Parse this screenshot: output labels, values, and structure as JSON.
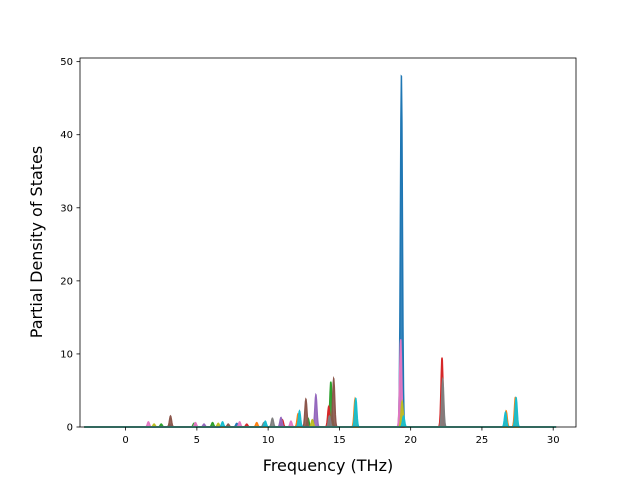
{
  "chart_data": {
    "type": "area",
    "title": "",
    "xlabel": "Frequency (THz)",
    "ylabel": "Partial Density of States",
    "xlim": [
      -3.2,
      31.6
    ],
    "ylim": [
      0,
      50.5
    ],
    "xticks": [
      0,
      5,
      10,
      15,
      20,
      25,
      30
    ],
    "yticks": [
      0,
      10,
      20,
      30,
      40,
      50
    ],
    "x_range_plotted": [
      -2.9,
      30.2
    ],
    "legend": "none",
    "grid": false,
    "series_colors": [
      "#1f77b4",
      "#ff7f0e",
      "#2ca02c",
      "#d62728",
      "#9467bd",
      "#8c564b",
      "#e377c2",
      "#7f7f7f",
      "#bcbd22",
      "#17becf"
    ],
    "series": [
      {
        "peaks": [
          [
            19.35,
            48.0
          ],
          [
            14.5,
            1.2
          ],
          [
            3.1,
            0.4
          ],
          [
            7.8,
            0.5
          ]
        ]
      },
      {
        "peaks": [
          [
            19.45,
            1.6
          ],
          [
            26.7,
            2.2
          ],
          [
            27.35,
            4.1
          ],
          [
            16.1,
            3.8
          ],
          [
            12.1,
            1.8
          ],
          [
            9.2,
            0.6
          ]
        ]
      },
      {
        "peaks": [
          [
            14.4,
            6.2
          ],
          [
            12.8,
            1.2
          ],
          [
            6.1,
            0.6
          ],
          [
            4.8,
            0.5
          ],
          [
            2.5,
            0.4
          ]
        ]
      },
      {
        "peaks": [
          [
            22.2,
            9.5
          ],
          [
            14.25,
            2.8
          ],
          [
            11.0,
            1.0
          ],
          [
            8.5,
            0.4
          ]
        ]
      },
      {
        "peaks": [
          [
            13.35,
            4.4
          ],
          [
            10.9,
            1.3
          ],
          [
            5.5,
            0.4
          ]
        ]
      },
      {
        "peaks": [
          [
            14.6,
            6.6
          ],
          [
            12.65,
            3.8
          ],
          [
            3.15,
            1.5
          ],
          [
            7.2,
            0.4
          ]
        ]
      },
      {
        "peaks": [
          [
            19.3,
            12.0
          ],
          [
            1.6,
            0.7
          ],
          [
            4.9,
            0.6
          ],
          [
            8.0,
            0.7
          ],
          [
            11.6,
            0.8
          ]
        ]
      },
      {
        "peaks": [
          [
            22.25,
            6.5
          ],
          [
            10.3,
            1.2
          ],
          [
            9.7,
            0.6
          ],
          [
            14.3,
            1.5
          ]
        ]
      },
      {
        "peaks": [
          [
            19.4,
            3.5
          ],
          [
            13.1,
            1.0
          ],
          [
            6.5,
            0.5
          ],
          [
            2.0,
            0.4
          ]
        ]
      },
      {
        "peaks": [
          [
            27.4,
            4.0
          ],
          [
            26.65,
            2.0
          ],
          [
            16.15,
            3.9
          ],
          [
            19.5,
            1.5
          ],
          [
            12.2,
            2.2
          ],
          [
            9.8,
            0.8
          ],
          [
            6.8,
            0.7
          ]
        ]
      }
    ],
    "peak_width_thz": 0.07
  }
}
